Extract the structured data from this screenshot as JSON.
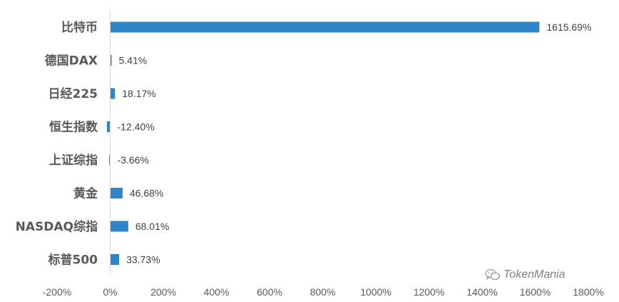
{
  "chart_data": {
    "type": "bar",
    "orientation": "horizontal",
    "categories": [
      "比特币",
      "德国DAX",
      "日经225",
      "恒生指数",
      "上证综指",
      "黄金",
      "NASDAQ综指",
      "标普500"
    ],
    "values": [
      1615.69,
      5.41,
      18.17,
      -12.4,
      -3.66,
      46.68,
      68.01,
      33.73
    ],
    "data_labels": [
      "1615.69%",
      "5.41%",
      "18.17%",
      "-12.40%",
      "-3.66%",
      "46.68%",
      "68.01%",
      "33.73%"
    ],
    "xlim": [
      -200,
      1800
    ],
    "xticks": [
      -200,
      0,
      200,
      400,
      600,
      800,
      1000,
      1200,
      1400,
      1600,
      1800
    ],
    "xtick_labels": [
      "-200%",
      "0%",
      "200%",
      "400%",
      "600%",
      "800%",
      "1000%",
      "1200%",
      "1400%",
      "1600%",
      "1800%"
    ],
    "bar_color": "#2E86C8",
    "grid": false,
    "legend": "none"
  },
  "watermark": {
    "text": "TokenMania",
    "icon": "wechat-icon"
  }
}
